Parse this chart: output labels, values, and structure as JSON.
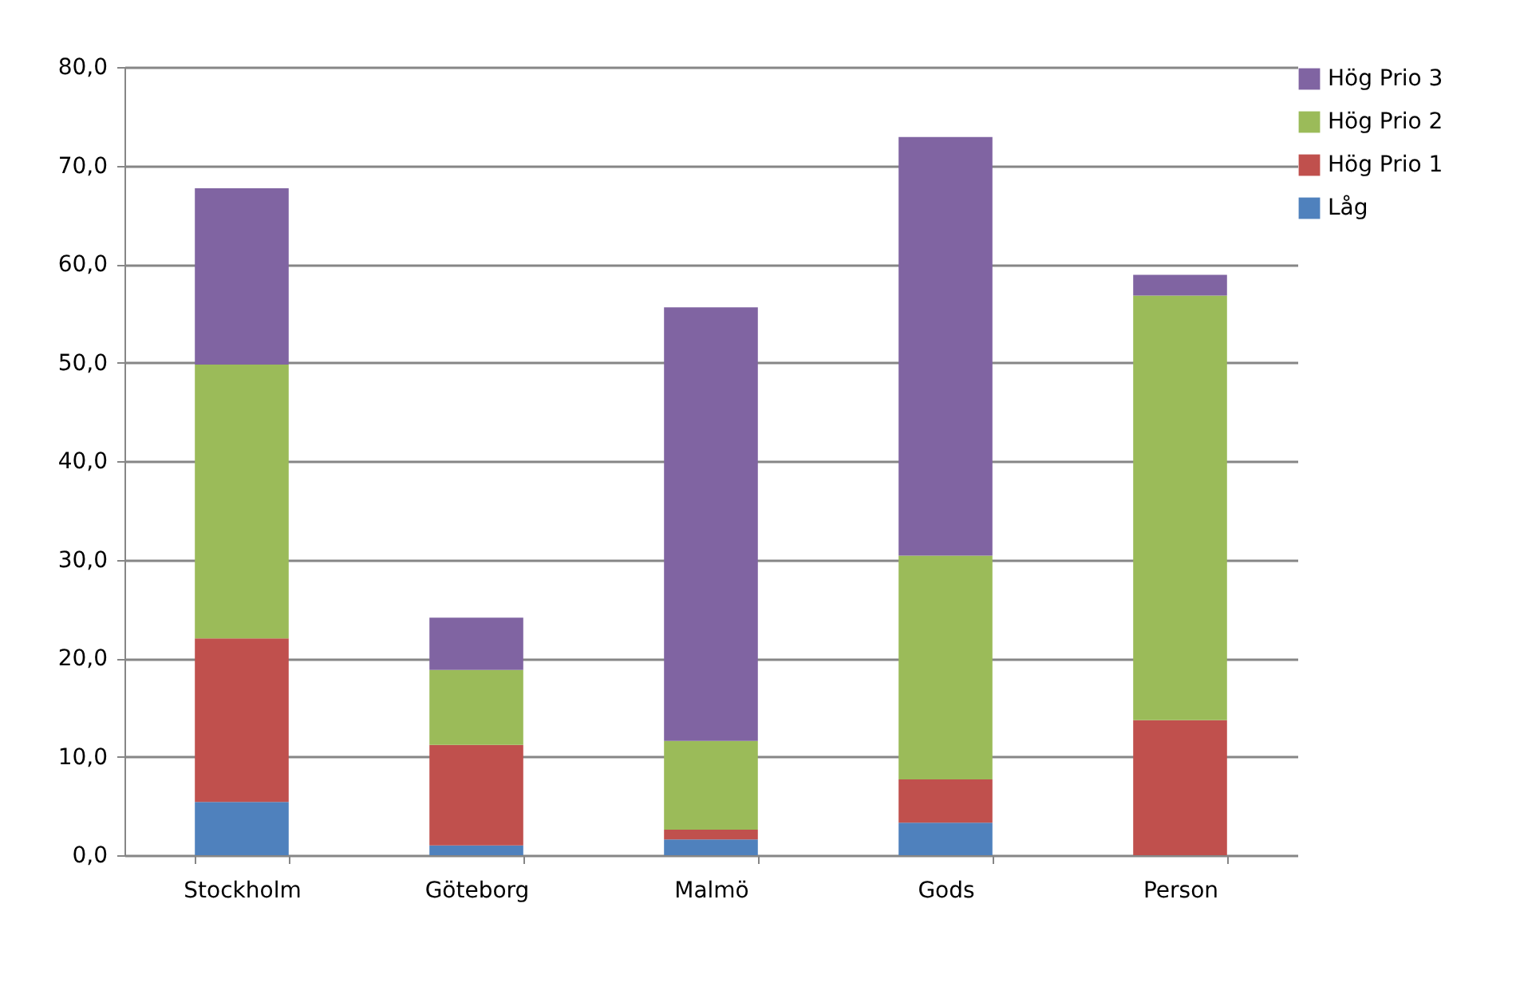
{
  "chart_data": {
    "type": "bar",
    "stacked": true,
    "categories": [
      "Stockholm",
      "Göteborg",
      "Malmö",
      "Gods",
      "Person"
    ],
    "series": [
      {
        "name": "Låg",
        "color": "#4f81bd",
        "values": [
          5.4,
          1.0,
          1.6,
          3.3,
          0
        ]
      },
      {
        "name": "Hög Prio 1",
        "color": "#c0504d",
        "values": [
          16.6,
          10.2,
          1.0,
          4.4,
          13.7
        ]
      },
      {
        "name": "Hög Prio 2",
        "color": "#9bbb59",
        "values": [
          27.8,
          7.6,
          9.0,
          22.7,
          43.1
        ]
      },
      {
        "name": "Hög Prio 3",
        "color": "#8064a2",
        "values": [
          17.9,
          5.3,
          44.0,
          42.5,
          2.1
        ]
      }
    ],
    "ylim": [
      0,
      80
    ],
    "yticks": [
      {
        "value": 0,
        "label": "0,0"
      },
      {
        "value": 10,
        "label": "10,0"
      },
      {
        "value": 20,
        "label": "20,0"
      },
      {
        "value": 30,
        "label": "30,0"
      },
      {
        "value": 40,
        "label": "40,0"
      },
      {
        "value": 50,
        "label": "50,0"
      },
      {
        "value": 60,
        "label": "60,0"
      },
      {
        "value": 70,
        "label": "70,0"
      },
      {
        "value": 80,
        "label": "80,0"
      }
    ],
    "grid": "y",
    "legend": "right"
  }
}
